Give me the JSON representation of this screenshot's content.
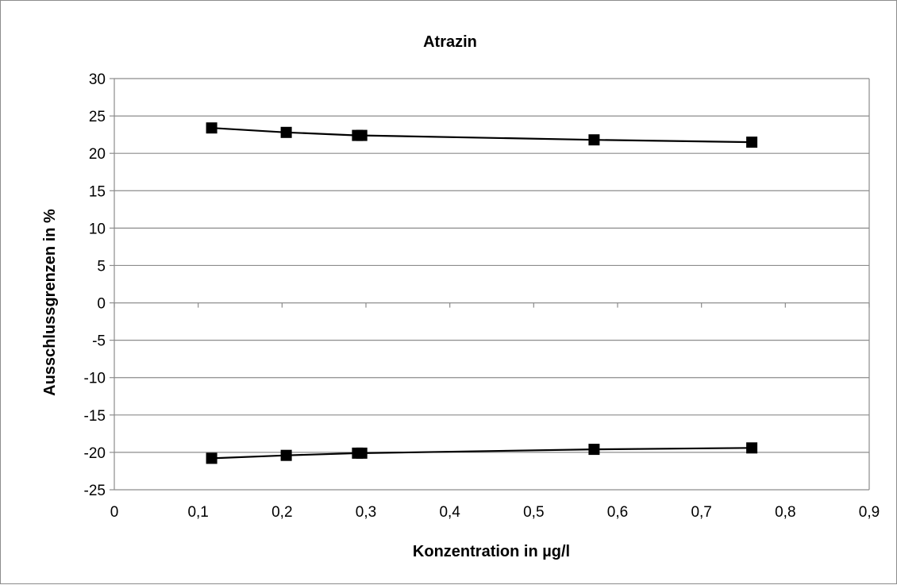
{
  "chart_data": {
    "type": "line",
    "title": "Atrazin",
    "xlabel": "Konzentration in µg/l",
    "ylabel": "Ausschlussgrenzen in %",
    "xlim": [
      0,
      0.9
    ],
    "ylim": [
      -25,
      30
    ],
    "x_ticks": [
      0,
      0.1,
      0.2,
      0.3,
      0.4,
      0.5,
      0.6,
      0.7,
      0.8,
      0.9
    ],
    "x_tick_labels": [
      "0",
      "0,1",
      "0,2",
      "0,3",
      "0,4",
      "0,5",
      "0,6",
      "0,7",
      "0,8",
      "0,9"
    ],
    "y_ticks": [
      30,
      25,
      20,
      15,
      10,
      5,
      0,
      -5,
      -10,
      -15,
      -20,
      -25
    ],
    "y_tick_labels": [
      "30",
      "25",
      "20",
      "15",
      "10",
      "5",
      "0",
      "-5",
      "-10",
      "-15",
      "-20",
      "-25"
    ],
    "grid": true,
    "legend": "none",
    "series": [
      {
        "x": [
          0.116,
          0.205,
          0.29,
          0.295,
          0.572,
          0.76
        ],
        "values": [
          23.4,
          22.8,
          22.4,
          22.4,
          21.8,
          21.5
        ],
        "color": "#000000",
        "marker": "square"
      },
      {
        "x": [
          0.116,
          0.205,
          0.29,
          0.295,
          0.572,
          0.76
        ],
        "values": [
          -20.8,
          -20.4,
          -20.1,
          -20.1,
          -19.6,
          -19.4
        ],
        "color": "#000000",
        "marker": "square"
      }
    ]
  }
}
